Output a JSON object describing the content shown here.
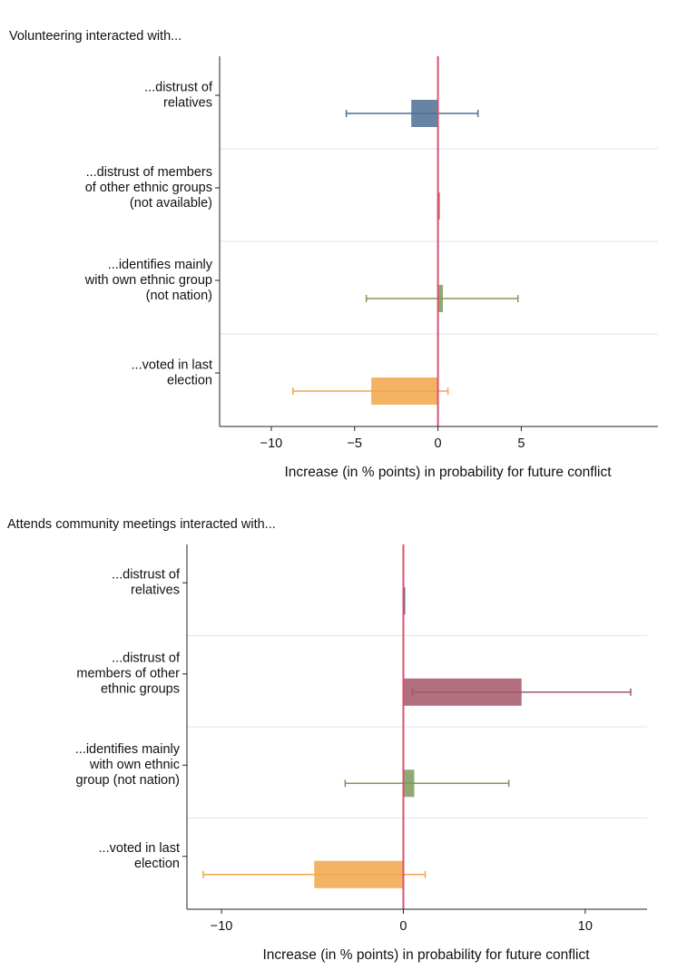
{
  "chart_data": [
    {
      "type": "bar",
      "orientation": "horizontal",
      "title": "Volunteering interacted with...",
      "x_label": "Increase (in % points) in probability for future conflict",
      "categories": [
        [
          "...distrust of",
          "relatives"
        ],
        [
          "...distrust of members",
          "of other ethnic groups",
          "(not available)"
        ],
        [
          "...identifies mainly",
          "with own ethnic group",
          "(not nation)"
        ],
        [
          "...voted in last",
          "election"
        ]
      ],
      "values": [
        -1.6,
        0,
        0.3,
        -4.0
      ],
      "ci_low": [
        -5.5,
        null,
        -4.3,
        -8.7
      ],
      "ci_high": [
        2.4,
        null,
        4.8,
        0.6
      ],
      "colors": [
        "#4d6f95",
        "#9b4a5c",
        "#7d9a5b",
        "#f2a649"
      ],
      "xlim": [
        -13.1,
        13.2
      ],
      "xticks": [
        {
          "value": -10,
          "label": "−10"
        },
        {
          "value": -5,
          "label": "−5"
        },
        0,
        5
      ],
      "reference_line": {
        "value": 0,
        "color": "#d9536f"
      }
    },
    {
      "type": "bar",
      "orientation": "horizontal",
      "title": "Attends community meetings interacted with...",
      "x_label": "Increase (in % points) in probability for future conflict",
      "categories": [
        [
          "...distrust of",
          "relatives"
        ],
        [
          "...distrust of",
          "members of other",
          "ethnic groups"
        ],
        [
          "...identifies mainly",
          "with own ethnic",
          "group (not nation)"
        ],
        [
          "...voted in last",
          "election"
        ]
      ],
      "values": [
        0,
        6.5,
        0.6,
        -4.9
      ],
      "ci_low": [
        null,
        0.5,
        -3.2,
        -11.0
      ],
      "ci_high": [
        null,
        12.5,
        5.8,
        1.2
      ],
      "colors": [
        "#2f4f7a",
        "#a3566a",
        "#7d9a5b",
        "#f2a649"
      ],
      "xlim": [
        -11.9,
        13.4
      ],
      "xticks": [
        {
          "value": -10,
          "label": "−10"
        },
        0,
        10
      ],
      "reference_line": {
        "value": 0,
        "color": "#d9536f"
      }
    }
  ]
}
